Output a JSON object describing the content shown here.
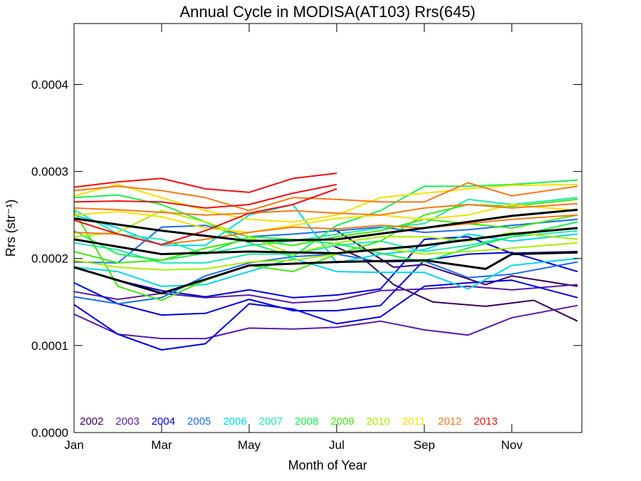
{
  "chart_data": {
    "type": "line",
    "title": "Annual Cycle in MODISA(AT103) Rrs(645)",
    "xlabel": "Month of Year",
    "ylabel": "Rrs (str⁻¹)",
    "xlim": [
      1,
      12.6
    ],
    "ylim": [
      0,
      0.00047
    ],
    "x_ticks": [
      {
        "value": 1,
        "label": "Jan"
      },
      {
        "value": 3,
        "label": "Mar"
      },
      {
        "value": 5,
        "label": "May"
      },
      {
        "value": 7,
        "label": "Jul"
      },
      {
        "value": 9,
        "label": "Sep"
      },
      {
        "value": 11,
        "label": "Nov"
      }
    ],
    "y_ticks": [
      {
        "value": 0,
        "label": "0.0000"
      },
      {
        "value": 0.0001,
        "label": "0.0001"
      },
      {
        "value": 0.0002,
        "label": "0.0002"
      },
      {
        "value": 0.0003,
        "label": "0.0003"
      },
      {
        "value": 0.0004,
        "label": "0.0004"
      }
    ],
    "legend": {
      "position": "bottom-left"
    },
    "series": [
      {
        "name": "2002",
        "color": "#3a0058",
        "lines": [
          {
            "x": [
              6.9,
              8.3,
              9.0,
              10.4,
              11.0,
              12.5
            ],
            "y": [
              0.000235,
              0.00019,
              0.000193,
              0.00017,
              0.00018,
              0.000168
            ]
          },
          {
            "x": [
              6.9,
              7.6,
              8.3,
              9.2,
              10.4,
              11.5,
              12.5
            ],
            "y": [
              0.000215,
              0.0002,
              0.00017,
              0.00015,
              0.000145,
              0.000152,
              0.000128
            ]
          }
        ]
      },
      {
        "name": "2003",
        "color": "#5a1aa8",
        "lines": [
          {
            "x": [
              1,
              2,
              3,
              4,
              5,
              6,
              7,
              8,
              9,
              10,
              11,
              12.5
            ],
            "y": [
              0.000136,
              0.000113,
              0.000108,
              0.000108,
              0.00012,
              0.000119,
              0.000121,
              0.000128,
              0.000118,
              0.000112,
              0.000132,
              0.000146
            ]
          },
          {
            "x": [
              1,
              2,
              3,
              4,
              5,
              6,
              7,
              8,
              9,
              10,
              11,
              12.5
            ],
            "y": [
              0.000162,
              0.000153,
              0.00016,
              0.000155,
              0.000158,
              0.000149,
              0.000152,
              0.000163,
              0.000165,
              0.000168,
              0.000164,
              0.00017
            ]
          }
        ]
      },
      {
        "name": "2004",
        "color": "#0000e0",
        "lines": [
          {
            "x": [
              1,
              2,
              3,
              4,
              5,
              6,
              7,
              8,
              9,
              10,
              11,
              12.5
            ],
            "y": [
              0.000147,
              0.000113,
              9.5e-05,
              0.000102,
              0.000148,
              0.000142,
              0.000125,
              0.000133,
              0.000168,
              0.000172,
              0.000175,
              0.000155
            ]
          },
          {
            "x": [
              1,
              2,
              3,
              4,
              5,
              6,
              7,
              8,
              9,
              10,
              11,
              12.5
            ],
            "y": [
              0.000172,
              0.000148,
              0.000135,
              0.000137,
              0.000153,
              0.00014,
              0.00014,
              0.000146,
              0.000198,
              0.000205,
              0.000207,
              0.000185
            ]
          },
          {
            "x": [
              1,
              2,
              3,
              4,
              5,
              6,
              7,
              8,
              9,
              10,
              11,
              12.5
            ],
            "y": [
              0.00019,
              0.000175,
              0.000163,
              0.000156,
              0.000164,
              0.000155,
              0.000158,
              0.000165,
              0.000222,
              0.000225,
              0.000206,
              0.000208
            ]
          }
        ]
      },
      {
        "name": "2005",
        "color": "#1a6cf0",
        "lines": [
          {
            "x": [
              1,
              2,
              3,
              4,
              5,
              6,
              7,
              8,
              9,
              10,
              11,
              12.5
            ],
            "y": [
              0.000196,
              0.000195,
              0.000236,
              0.000238,
              0.000225,
              0.000228,
              0.000232,
              0.000236,
              0.00023,
              0.000233,
              0.000238,
              0.000245
            ]
          },
          {
            "x": [
              1,
              2,
              3,
              4,
              5,
              6,
              7,
              8,
              9,
              10,
              11,
              12.5
            ],
            "y": [
              0.000156,
              0.000148,
              0.000155,
              0.00018,
              0.000195,
              0.000202,
              0.000205,
              0.000196,
              0.000197,
              0.000178,
              0.000182,
              0.000196
            ]
          }
        ]
      },
      {
        "name": "2006",
        "color": "#00d8e8",
        "lines": [
          {
            "x": [
              1,
              2,
              3,
              4,
              5,
              6,
              7,
              8,
              9,
              10,
              11,
              12.5
            ],
            "y": [
              0.00019,
              0.000185,
              0.000168,
              0.00017,
              0.000185,
              0.0002,
              0.000185,
              0.000184,
              0.000184,
              0.000165,
              0.000192,
              0.0002
            ]
          },
          {
            "x": [
              1,
              2,
              3,
              4,
              5,
              6,
              7,
              8,
              9,
              10,
              11,
              12.5
            ],
            "y": [
              0.00025,
              0.000235,
              0.000215,
              0.000215,
              0.00025,
              0.000262,
              0.000195,
              0.000205,
              0.00021,
              0.000228,
              0.00022,
              0.000228
            ]
          }
        ]
      },
      {
        "name": "2007",
        "color": "#20e8b0",
        "lines": [
          {
            "x": [
              1,
              2,
              3,
              4,
              5,
              6,
              7,
              8,
              9,
              10,
              11,
              12.5
            ],
            "y": [
              0.000256,
              0.000228,
              0.000222,
              0.000205,
              0.000215,
              0.00022,
              0.000228,
              0.000235,
              0.00024,
              0.000268,
              0.000262,
              0.00027
            ]
          },
          {
            "x": [
              1,
              2,
              3,
              4,
              5,
              6,
              7,
              8,
              9,
              10,
              11,
              12.5
            ],
            "y": [
              0.000218,
              0.00021,
              0.000195,
              0.000195,
              0.000205,
              0.000205,
              0.000215,
              0.00022,
              0.000208,
              0.000215,
              0.000225,
              0.000232
            ]
          }
        ]
      },
      {
        "name": "2008",
        "color": "#18f050",
        "lines": [
          {
            "x": [
              1,
              2,
              3,
              4,
              5,
              6,
              7,
              8,
              9,
              10,
              11,
              12.5
            ],
            "y": [
              0.00027,
              0.000273,
              0.000262,
              0.000242,
              0.000218,
              0.000202,
              0.000238,
              0.000255,
              0.000283,
              0.000283,
              0.000285,
              0.00029
            ]
          },
          {
            "x": [
              1,
              2,
              3,
              4,
              5,
              6,
              7,
              8,
              9,
              10,
              11,
              12.5
            ],
            "y": [
              0.000232,
              0.000205,
              0.000198,
              0.000206,
              0.000225,
              0.000222,
              0.000217,
              0.000206,
              0.000196,
              0.000212,
              0.000225,
              0.000242
            ]
          }
        ]
      },
      {
        "name": "2009",
        "color": "#40e810",
        "lines": [
          {
            "x": [
              1,
              2,
              3,
              4,
              5,
              6,
              7,
              8,
              9,
              10,
              11,
              12.5
            ],
            "y": [
              0.000255,
              0.000168,
              0.000152,
              0.000175,
              0.000192,
              0.000185,
              0.000205,
              0.00022,
              0.00025,
              0.000262,
              0.00026,
              0.000268
            ]
          },
          {
            "x": [
              1,
              2,
              3,
              4,
              5,
              6,
              7,
              8,
              9,
              10,
              11,
              12.5
            ],
            "y": [
              0.000208,
              0.000195,
              0.000198,
              0.000212,
              0.000222,
              0.000215,
              0.000225,
              0.000232,
              0.000245,
              0.00024,
              0.000235,
              0.00025
            ]
          }
        ]
      },
      {
        "name": "2010",
        "color": "#a8f000",
        "lines": [
          {
            "x": [
              1,
              2,
              3,
              4,
              5,
              6,
              7,
              8,
              9,
              10,
              11,
              12.5
            ],
            "y": [
              0.000225,
              0.00023,
              0.000255,
              0.000242,
              0.000225,
              0.000205,
              0.000218,
              0.000225,
              0.000225,
              0.00022,
              0.00023,
              0.000222
            ]
          },
          {
            "x": [
              1,
              2,
              3,
              4,
              5,
              6,
              7,
              8,
              9,
              10,
              11,
              12.5
            ],
            "y": [
              0.000198,
              0.00019,
              0.000187,
              0.000188,
              0.000196,
              0.000198,
              0.000205,
              0.000212,
              0.000205,
              0.000208,
              0.000212,
              0.000218
            ]
          }
        ]
      },
      {
        "name": "2011",
        "color": "#f8e000",
        "lines": [
          {
            "x": [
              1,
              2,
              3,
              4,
              5,
              6,
              7,
              8,
              9,
              10,
              11,
              12.5
            ],
            "y": [
              0.000272,
              0.000285,
              0.00027,
              0.000255,
              0.000245,
              0.000242,
              0.00025,
              0.00027,
              0.000275,
              0.00028,
              0.000284,
              0.000285
            ]
          },
          {
            "x": [
              1,
              2,
              3,
              4,
              5,
              6,
              7,
              8,
              9,
              10,
              11,
              12.5
            ],
            "y": [
              0.00025,
              0.000254,
              0.000248,
              0.000235,
              0.00023,
              0.000238,
              0.000246,
              0.00025,
              0.000245,
              0.00025,
              0.000262,
              0.000255
            ]
          }
        ]
      },
      {
        "name": "2012",
        "color": "#f87818",
        "lines": [
          {
            "x": [
              1,
              2,
              3,
              4,
              5,
              6,
              7,
              8,
              9,
              10,
              11,
              12.5
            ],
            "y": [
              0.000278,
              0.000283,
              0.000278,
              0.00027,
              0.000255,
              0.00027,
              0.000268,
              0.000265,
              0.000265,
              0.000287,
              0.000272,
              0.000283
            ]
          },
          {
            "x": [
              1,
              2,
              3,
              4,
              5,
              6,
              7,
              8,
              9,
              10,
              11,
              12.5
            ],
            "y": [
              0.000258,
              0.000256,
              0.000253,
              0.00025,
              0.000252,
              0.000255,
              0.000252,
              0.00025,
              0.000258,
              0.000262,
              0.000258,
              0.000263
            ]
          },
          {
            "x": [
              1,
              2,
              3,
              4,
              5,
              6,
              7,
              8,
              9,
              10,
              11,
              12.5
            ],
            "y": [
              0.00023,
              0.000228,
              0.000216,
              0.000222,
              0.00023,
              0.000236,
              0.000234,
              0.000238,
              0.000235,
              0.00024,
              0.000245,
              0.00025
            ]
          }
        ]
      },
      {
        "name": "2013",
        "color": "#f01010",
        "lines": [
          {
            "x": [
              1,
              2,
              3,
              4,
              5,
              6,
              7
            ],
            "y": [
              0.000282,
              0.000288,
              0.000292,
              0.00028,
              0.000276,
              0.000292,
              0.000298
            ]
          },
          {
            "x": [
              1,
              2,
              3,
              4,
              5,
              6,
              7
            ],
            "y": [
              0.000265,
              0.000266,
              0.000265,
              0.000258,
              0.000262,
              0.000275,
              0.000285
            ]
          },
          {
            "x": [
              1,
              2,
              3,
              4,
              5,
              6,
              7
            ],
            "y": [
              0.000244,
              0.000228,
              0.000216,
              0.000232,
              0.000252,
              0.000262,
              0.00028
            ]
          }
        ]
      }
    ],
    "mean_lines": {
      "color": "#000000",
      "lines": [
        {
          "x": [
            1,
            3,
            5,
            7,
            9,
            11,
            12.5
          ],
          "y": [
            0.000246,
            0.000232,
            0.00022,
            0.000222,
            0.000235,
            0.000249,
            0.000256
          ]
        },
        {
          "x": [
            1,
            3,
            5,
            7,
            9,
            11,
            12.5
          ],
          "y": [
            0.000222,
            0.000205,
            0.000208,
            0.000206,
            0.000215,
            0.000228,
            0.000235
          ]
        },
        {
          "x": [
            1,
            3,
            5,
            7,
            9,
            10.4,
            11,
            12.5
          ],
          "y": [
            0.00019,
            0.00016,
            0.000192,
            0.000196,
            0.000198,
            0.000188,
            0.000205,
            0.000207
          ]
        }
      ]
    }
  }
}
